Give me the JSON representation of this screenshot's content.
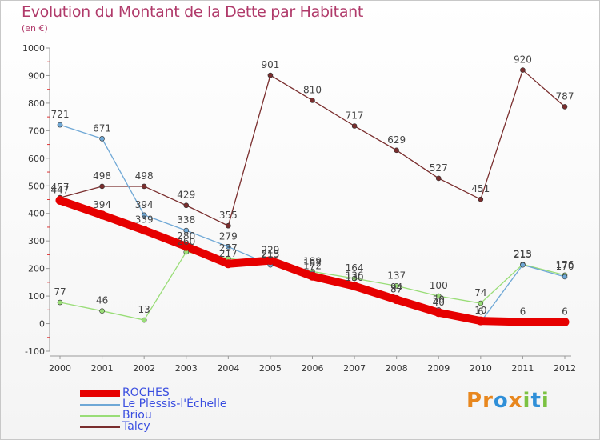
{
  "title": "Evolution du Montant de la Dette par Habitant",
  "subtitle": "(en €)",
  "logo": {
    "text": "Proxiti",
    "letters": [
      {
        "ch": "P",
        "color": "#e8871e"
      },
      {
        "ch": "r",
        "color": "#e8871e"
      },
      {
        "ch": "o",
        "color": "#2f8fd8"
      },
      {
        "ch": "x",
        "color": "#e8871e"
      },
      {
        "ch": "i",
        "color": "#7cc242"
      },
      {
        "ch": "t",
        "color": "#2f8fd8"
      },
      {
        "ch": "i",
        "color": "#7cc242"
      }
    ]
  },
  "chart_data": {
    "type": "line",
    "title": "Evolution du Montant de la Dette par Habitant",
    "subtitle": "(en €)",
    "x": [
      "2000",
      "2001",
      "2002",
      "2003",
      "2004",
      "2005",
      "2006",
      "2007",
      "2008",
      "2009",
      "2010",
      "2011",
      "2012"
    ],
    "ylim": [
      -100,
      1000
    ],
    "yticks": [
      -100,
      0,
      100,
      200,
      300,
      400,
      500,
      600,
      700,
      800,
      900,
      1000
    ],
    "grid": false,
    "legend_position": "bottom-left",
    "series": [
      {
        "name": "ROCHES",
        "color": "#e60000",
        "values": [
          447,
          394,
          339,
          280,
          217,
          229,
          172,
          136,
          87,
          40,
          10,
          6,
          6
        ]
      },
      {
        "name": "Le Plessis-l'Échelle",
        "color": "#6fa8d6",
        "values": [
          721,
          671,
          394,
          338,
          279,
          213,
          182,
          130,
          94,
          50,
          6,
          213,
          170
        ]
      },
      {
        "name": "Briou",
        "color": "#99dd77",
        "values": [
          77,
          46,
          13,
          260,
          237,
          215,
          189,
          164,
          137,
          100,
          74,
          215,
          176
        ]
      },
      {
        "name": "Talcy",
        "color": "#7a2e2e",
        "values": [
          457,
          498,
          498,
          429,
          355,
          901,
          810,
          717,
          629,
          527,
          451,
          920,
          787
        ]
      }
    ]
  }
}
